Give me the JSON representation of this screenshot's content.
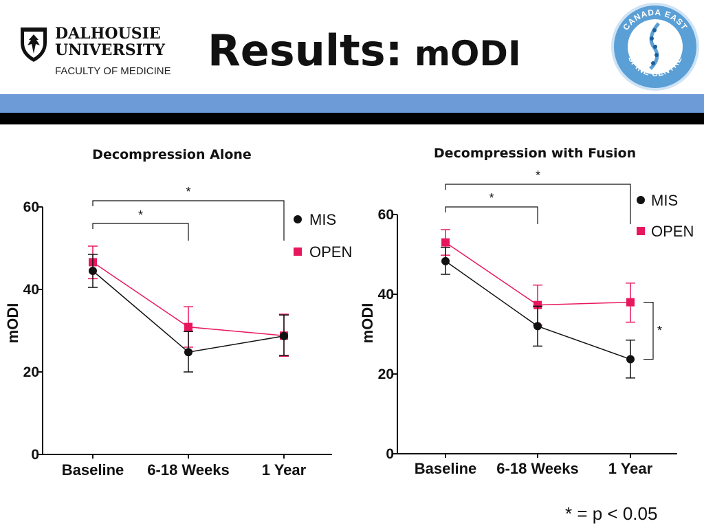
{
  "slide": {
    "title_bold": "Results:",
    "title_rest": " mODI",
    "footnote": "* = p < 0.05"
  },
  "header": {
    "university_name_line1": "DALHOUSIE",
    "university_name_line2": "UNIVERSITY",
    "faculty": "FACULTY OF MEDICINE",
    "seal_text_top": "CANADA EAST",
    "seal_text_bottom": "SPINE CENTRE",
    "colors": {
      "blue_band": "#6d9bd8",
      "black_band": "#000000"
    }
  },
  "chart_data": [
    {
      "type": "line",
      "title": "Decompression Alone",
      "ylabel": "mODI",
      "xlabel": "",
      "categories": [
        "Baseline",
        "6-18 Weeks",
        "1 Year"
      ],
      "ylim": [
        0,
        60
      ],
      "yticks": [
        0,
        20,
        40,
        60
      ],
      "grid": false,
      "legend_position": "top-right",
      "series": [
        {
          "name": "MIS",
          "color": "#111111",
          "marker": "circle",
          "values": [
            44.5,
            24.8,
            28.7
          ],
          "err_low": [
            40.5,
            20.0,
            24.0
          ],
          "err_high": [
            48.5,
            29.8,
            33.8
          ]
        },
        {
          "name": "OPEN",
          "color": "#e8175d",
          "marker": "square",
          "values": [
            46.6,
            30.9,
            28.8
          ],
          "err_low": [
            42.6,
            26.0,
            23.8
          ],
          "err_high": [
            50.5,
            35.8,
            34.0
          ]
        }
      ],
      "significance": [
        {
          "from": "Baseline",
          "to": "6-18 Weeks",
          "label": "*"
        },
        {
          "from": "Baseline",
          "to": "1 Year",
          "label": "*"
        }
      ]
    },
    {
      "type": "line",
      "title": "Decompression with Fusion",
      "ylabel": "mODI",
      "xlabel": "",
      "categories": [
        "Baseline",
        "6-18 Weeks",
        "1 Year"
      ],
      "ylim": [
        0,
        60
      ],
      "yticks": [
        0,
        20,
        40,
        60
      ],
      "grid": false,
      "legend_position": "top-right",
      "series": [
        {
          "name": "MIS",
          "color": "#111111",
          "marker": "circle",
          "values": [
            48.3,
            32.0,
            23.7
          ],
          "err_low": [
            45.0,
            27.0,
            19.0
          ],
          "err_high": [
            51.7,
            37.0,
            28.5
          ]
        },
        {
          "name": "OPEN",
          "color": "#e8175d",
          "marker": "square",
          "values": [
            53.0,
            37.3,
            38.0
          ],
          "err_low": [
            49.8,
            32.3,
            33.0
          ],
          "err_high": [
            56.2,
            42.3,
            42.8
          ]
        }
      ],
      "significance": [
        {
          "from": "Baseline",
          "to": "6-18 Weeks",
          "label": "*"
        },
        {
          "from": "Baseline",
          "to": "1 Year",
          "label": "*"
        },
        {
          "at": "1 Year",
          "between": "series",
          "label": "*"
        }
      ]
    }
  ]
}
